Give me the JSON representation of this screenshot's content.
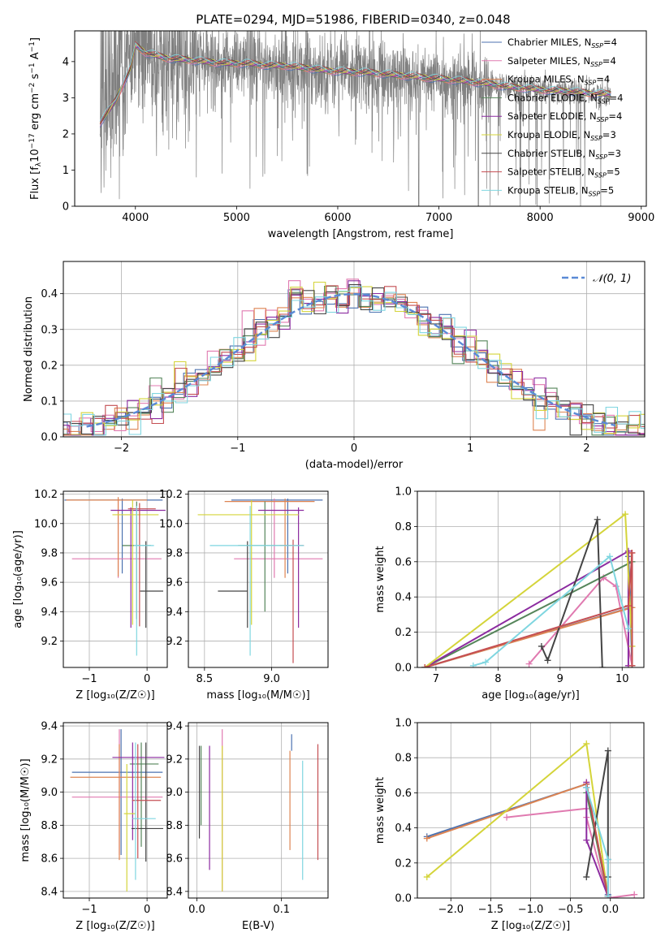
{
  "colors": [
    "#4c72b0",
    "#e07ab0",
    "#dd8452",
    "#55855a",
    "#8c2ba0",
    "#d4d43a",
    "#444444",
    "#c44e52",
    "#7fd6e0"
  ],
  "chart_data": [
    {
      "id": "spectrum",
      "type": "line",
      "title": "PLATE=0294, MJD=51986, FIBERID=0340, z=0.048",
      "xlabel": "wavelength [Angstrom, rest frame]",
      "ylabel_parts": [
        "Flux [f",
        "λ",
        "10",
        "−17",
        " erg cm",
        "−2",
        " s",
        "−1",
        " A",
        "−1",
        "]"
      ],
      "xlim": [
        3400,
        9050
      ],
      "ylim": [
        0,
        4.85
      ],
      "xticks": [
        4000,
        5000,
        6000,
        7000,
        8000,
        9000
      ],
      "yticks": [
        0,
        1,
        2,
        3,
        4
      ],
      "data_range": [
        3650,
        8700
      ],
      "model_points": {
        "x": [
          3650,
          3800,
          3950,
          4000,
          4100,
          4300,
          4500,
          4700,
          4900,
          5100,
          5300,
          5500,
          5700,
          5900,
          6100,
          6300,
          6500,
          6700,
          6900,
          7100,
          7300,
          7500,
          7700,
          7900,
          8100,
          8300,
          8500,
          8700
        ],
        "y": [
          2.3,
          2.9,
          3.8,
          4.45,
          4.25,
          4.1,
          4.05,
          4.0,
          3.95,
          3.95,
          3.9,
          3.88,
          3.82,
          3.75,
          3.72,
          3.7,
          3.65,
          3.6,
          3.55,
          3.5,
          3.45,
          3.38,
          3.3,
          3.25,
          3.2,
          3.18,
          3.12,
          3.1
        ]
      },
      "legend": [
        {
          "label": "Chabrier MILES, N",
          "ssp": "4"
        },
        {
          "label": "Salpeter MILES, N",
          "ssp": "4"
        },
        {
          "label": "Kroupa MILES, N",
          "ssp": "4"
        },
        {
          "label": "Chabrier ELODIE, N",
          "ssp": "4"
        },
        {
          "label": "Salpeter ELODIE, N",
          "ssp": "4"
        },
        {
          "label": "Kroupa ELODIE, N",
          "ssp": "3"
        },
        {
          "label": "Chabrier STELIB, N",
          "ssp": "3"
        },
        {
          "label": "Salpeter STELIB, N",
          "ssp": "5"
        },
        {
          "label": "Kroupa STELIB, N",
          "ssp": "5"
        }
      ],
      "legend_sub": "SSP",
      "legend_placement": "upper-right"
    },
    {
      "id": "residuals",
      "type": "histogram",
      "xlabel": "(data-model)/error",
      "ylabel": "Normed distribution",
      "xlim": [
        -2.5,
        2.5
      ],
      "ylim": [
        0,
        0.49
      ],
      "xticks": [
        -2,
        -1,
        0,
        1,
        2
      ],
      "yticks": [
        0.0,
        0.1,
        0.2,
        0.3,
        0.4
      ],
      "bin_width": 0.1,
      "grid": true,
      "legend": "𝒩(0, 1)",
      "legend_placement": "upper-right"
    },
    {
      "id": "age-vs-Z",
      "type": "errorbar",
      "xlabel": "Z [log₁₀(Z/Z☉)]",
      "ylabel": "age  [log₁₀(age/yr)]",
      "xlim": [
        -1.45,
        0.35
      ],
      "ylim": [
        9.02,
        10.22
      ],
      "xticks": [
        -1,
        0
      ],
      "yticks": [
        9.2,
        9.4,
        9.6,
        9.8,
        10.0,
        10.2
      ],
      "grid": true,
      "points": [
        {
          "x": -0.43,
          "y": 10.16,
          "xerr": [
            1.0,
            0.7
          ],
          "yerr": [
            0.5,
            0.01
          ]
        },
        {
          "x": -0.5,
          "y": 9.76,
          "xerr": [
            0.8,
            0.75
          ],
          "yerr": [
            0.13,
            0.41
          ]
        },
        {
          "x": -0.5,
          "y": 10.16,
          "xerr": [
            0.9,
            0.5
          ],
          "yerr": [
            0.52,
            0.02
          ]
        },
        {
          "x": -0.18,
          "y": 9.85,
          "xerr": [
            0.25,
            0.25
          ],
          "yerr": [
            0.5,
            0.3
          ]
        },
        {
          "x": -0.28,
          "y": 10.09,
          "xerr": [
            0.35,
            0.6
          ],
          "yerr": [
            0.8,
            0.02
          ]
        },
        {
          "x": -0.25,
          "y": 10.06,
          "xerr": [
            0.35,
            0.45
          ],
          "yerr": [
            0.75,
            0.1
          ]
        },
        {
          "x": -0.02,
          "y": 9.54,
          "xerr": [
            0.1,
            0.3
          ],
          "yerr": [
            0.25,
            0.34
          ]
        },
        {
          "x": -0.13,
          "y": 10.1,
          "xerr": [
            0.2,
            0.28
          ],
          "yerr": [
            0.8,
            0.04
          ]
        },
        {
          "x": -0.18,
          "y": 9.85,
          "xerr": [
            0.05,
            0.3
          ],
          "yerr": [
            0.75,
            0.27
          ]
        }
      ]
    },
    {
      "id": "age-vs-mass",
      "type": "errorbar",
      "xlabel": "mass [log₁₀(M/M☉)]",
      "ylabel": "",
      "xlim": [
        8.38,
        9.42
      ],
      "ylim": [
        9.02,
        10.22
      ],
      "xticks": [
        8.5,
        9.0
      ],
      "yticks": [
        9.2,
        9.4,
        9.6,
        9.8,
        10.0,
        10.2
      ],
      "grid": true,
      "points": [
        {
          "x": 9.12,
          "y": 10.16,
          "xerr": [
            0.42,
            0.26
          ],
          "yerr": [
            0.5,
            0.01
          ]
        },
        {
          "x": 9.02,
          "y": 9.76,
          "xerr": [
            0.3,
            0.36
          ],
          "yerr": [
            0.13,
            0.41
          ]
        },
        {
          "x": 9.1,
          "y": 10.15,
          "xerr": [
            0.45,
            0.22
          ],
          "yerr": [
            0.52,
            0.02
          ]
        },
        {
          "x": 8.95,
          "y": 9.85,
          "xerr": [
            0.2,
            0.2
          ],
          "yerr": [
            0.45,
            0.3
          ]
        },
        {
          "x": 9.2,
          "y": 10.09,
          "xerr": [
            0.3,
            0.04
          ],
          "yerr": [
            0.8,
            0.02
          ]
        },
        {
          "x": 8.85,
          "y": 10.06,
          "xerr": [
            0.4,
            0.35
          ],
          "yerr": [
            0.75,
            0.1
          ]
        },
        {
          "x": 8.82,
          "y": 9.54,
          "xerr": [
            0.22,
            0.0
          ],
          "yerr": [
            0.25,
            0.34
          ]
        },
        {
          "x": 9.16,
          "y": 9.85,
          "xerr": [
            0.1,
            0.08
          ],
          "yerr": [
            0.8,
            0.04
          ]
        },
        {
          "x": 8.84,
          "y": 9.85,
          "xerr": [
            0.3,
            0.4
          ],
          "yerr": [
            0.75,
            0.27
          ]
        }
      ]
    },
    {
      "id": "weight-vs-age",
      "type": "line",
      "xlabel": "age  [log₁₀(age/yr)]",
      "ylabel": "mass weight",
      "xlim": [
        6.7,
        10.35
      ],
      "ylim": [
        0,
        1.0
      ],
      "xticks": [
        7,
        8,
        9,
        10
      ],
      "yticks": [
        0.0,
        0.2,
        0.4,
        0.6,
        0.8,
        1.0
      ],
      "grid": true,
      "series": [
        {
          "x": [
            6.82,
            10.14,
            10.1,
            10.16
          ],
          "y": [
            0.0,
            0.34,
            0.63,
            0.01
          ]
        },
        {
          "x": [
            8.5,
            9.7,
            9.9,
            10.16
          ],
          "y": [
            0.02,
            0.51,
            0.46,
            0.01
          ]
        },
        {
          "x": [
            6.82,
            10.16,
            10.15,
            10.16
          ],
          "y": [
            0.0,
            0.34,
            0.65,
            0.01
          ]
        },
        {
          "x": [
            6.82,
            10.16,
            10.16
          ],
          "y": [
            0.0,
            0.6,
            0.01
          ]
        },
        {
          "x": [
            6.82,
            10.1,
            10.1
          ],
          "y": [
            0.0,
            0.66,
            0.01
          ]
        },
        {
          "x": [
            6.82,
            10.05,
            10.16
          ],
          "y": [
            0.0,
            0.87,
            0.12
          ]
        },
        {
          "x": [
            8.7,
            8.8,
            9.6,
            9.68
          ],
          "y": [
            0.12,
            0.04,
            0.84,
            0.0
          ]
        },
        {
          "x": [
            6.82,
            10.1,
            10.16,
            10.16
          ],
          "y": [
            0.0,
            0.35,
            0.65,
            0.01
          ]
        },
        {
          "x": [
            7.6,
            7.8,
            9.8,
            10.1
          ],
          "y": [
            0.01,
            0.03,
            0.63,
            0.22
          ]
        }
      ]
    },
    {
      "id": "mass-vs-Z",
      "type": "errorbar",
      "xlabel": "Z [log₁₀(Z/Z☉)]",
      "ylabel": "mass [log₁₀(M/M☉)]",
      "xlim": [
        -1.45,
        0.35
      ],
      "ylim": [
        8.36,
        9.42
      ],
      "xticks": [
        -1,
        0
      ],
      "yticks": [
        8.4,
        8.6,
        8.8,
        9.0,
        9.2,
        9.4
      ],
      "grid": true,
      "points": [
        {
          "x": -0.45,
          "y": 9.12,
          "xerr": [
            0.85,
            0.72
          ],
          "yerr": [
            0.5,
            0.26
          ]
        },
        {
          "x": -0.48,
          "y": 8.97,
          "xerr": [
            0.82,
            0.75
          ],
          "yerr": [
            0.35,
            0.41
          ]
        },
        {
          "x": -0.48,
          "y": 9.09,
          "xerr": [
            0.85,
            0.72
          ],
          "yerr": [
            0.5,
            0.2
          ]
        },
        {
          "x": -0.1,
          "y": 9.17,
          "xerr": [
            0.2,
            0.3
          ],
          "yerr": [
            0.5,
            0.13
          ]
        },
        {
          "x": -0.25,
          "y": 9.21,
          "xerr": [
            0.35,
            0.55
          ],
          "yerr": [
            0.5,
            0.09
          ]
        },
        {
          "x": -0.35,
          "y": 8.87,
          "xerr": [
            0.05,
            0.15
          ],
          "yerr": [
            0.47,
            0.3
          ]
        },
        {
          "x": -0.02,
          "y": 8.78,
          "xerr": [
            0.25,
            0.3
          ],
          "yerr": [
            0.2,
            0.52
          ]
        },
        {
          "x": -0.16,
          "y": 8.95,
          "xerr": [
            0.1,
            0.4
          ],
          "yerr": [
            0.35,
            0.34
          ]
        },
        {
          "x": -0.2,
          "y": 8.84,
          "xerr": [
            0.05,
            0.35
          ],
          "yerr": [
            0.37,
            0.46
          ]
        }
      ]
    },
    {
      "id": "mass-vs-ebv",
      "type": "errorbar",
      "xlabel": "E(B-V)",
      "ylabel": "",
      "xlim": [
        -0.01,
        0.155
      ],
      "ylim": [
        8.36,
        9.42
      ],
      "xticks": [
        0.0,
        0.1
      ],
      "yticks": [
        8.4,
        8.6,
        8.8,
        9.0,
        9.2,
        9.4
      ],
      "grid": true,
      "points": [
        {
          "x": 0.112,
          "y": 9.25,
          "yerr": [
            0.0,
            0.1
          ]
        },
        {
          "x": 0.03,
          "y": 9.0,
          "yerr": [
            0.6,
            0.38
          ]
        },
        {
          "x": 0.11,
          "y": 8.9,
          "yerr": [
            0.25,
            0.35
          ]
        },
        {
          "x": 0.005,
          "y": 8.9,
          "yerr": [
            0.1,
            0.38
          ]
        },
        {
          "x": 0.015,
          "y": 8.9,
          "yerr": [
            0.37,
            0.38
          ]
        },
        {
          "x": 0.03,
          "y": 8.9,
          "yerr": [
            0.5,
            0.38
          ]
        },
        {
          "x": 0.003,
          "y": 8.9,
          "yerr": [
            0.18,
            0.38
          ]
        },
        {
          "x": 0.143,
          "y": 8.94,
          "yerr": [
            0.35,
            0.35
          ]
        },
        {
          "x": 0.125,
          "y": 8.82,
          "yerr": [
            0.35,
            0.37
          ]
        }
      ]
    },
    {
      "id": "weight-vs-Z",
      "type": "line",
      "xlabel": "Z [log₁₀(Z/Z☉)]",
      "ylabel": "mass weight",
      "xlim": [
        -2.42,
        0.42
      ],
      "ylim": [
        0,
        1.0
      ],
      "xticks": [
        -2.0,
        -1.5,
        -1.0,
        -0.5,
        0.0
      ],
      "yticks": [
        0.0,
        0.2,
        0.4,
        0.6,
        0.8,
        1.0
      ],
      "grid": true,
      "series": [
        {
          "x": [
            -2.3,
            -0.3,
            -0.3,
            -0.03,
            -0.03
          ],
          "y": [
            0.35,
            0.65,
            0.63,
            0.02,
            0.22
          ]
        },
        {
          "x": [
            -1.3,
            -0.3,
            -0.3,
            -0.03,
            0.3
          ],
          "y": [
            0.46,
            0.51,
            0.46,
            0.0,
            0.02
          ]
        },
        {
          "x": [
            -2.3,
            -0.3,
            -0.03
          ],
          "y": [
            0.34,
            0.65,
            0.01
          ]
        },
        {
          "x": [
            -0.3,
            -0.03
          ],
          "y": [
            0.6,
            0.01
          ]
        },
        {
          "x": [
            -0.3,
            -0.3,
            -0.03
          ],
          "y": [
            0.66,
            0.33,
            0.01
          ]
        },
        {
          "x": [
            -2.3,
            -0.3,
            -0.03
          ],
          "y": [
            0.12,
            0.88,
            0.01
          ]
        },
        {
          "x": [
            -0.3,
            -0.03,
            -0.03
          ],
          "y": [
            0.12,
            0.84,
            0.12
          ]
        },
        {
          "x": [
            -0.3,
            -0.03
          ],
          "y": [
            0.65,
            0.01
          ]
        },
        {
          "x": [
            -0.3,
            -0.03,
            -0.03
          ],
          "y": [
            0.63,
            0.22,
            0.01
          ]
        }
      ]
    }
  ]
}
